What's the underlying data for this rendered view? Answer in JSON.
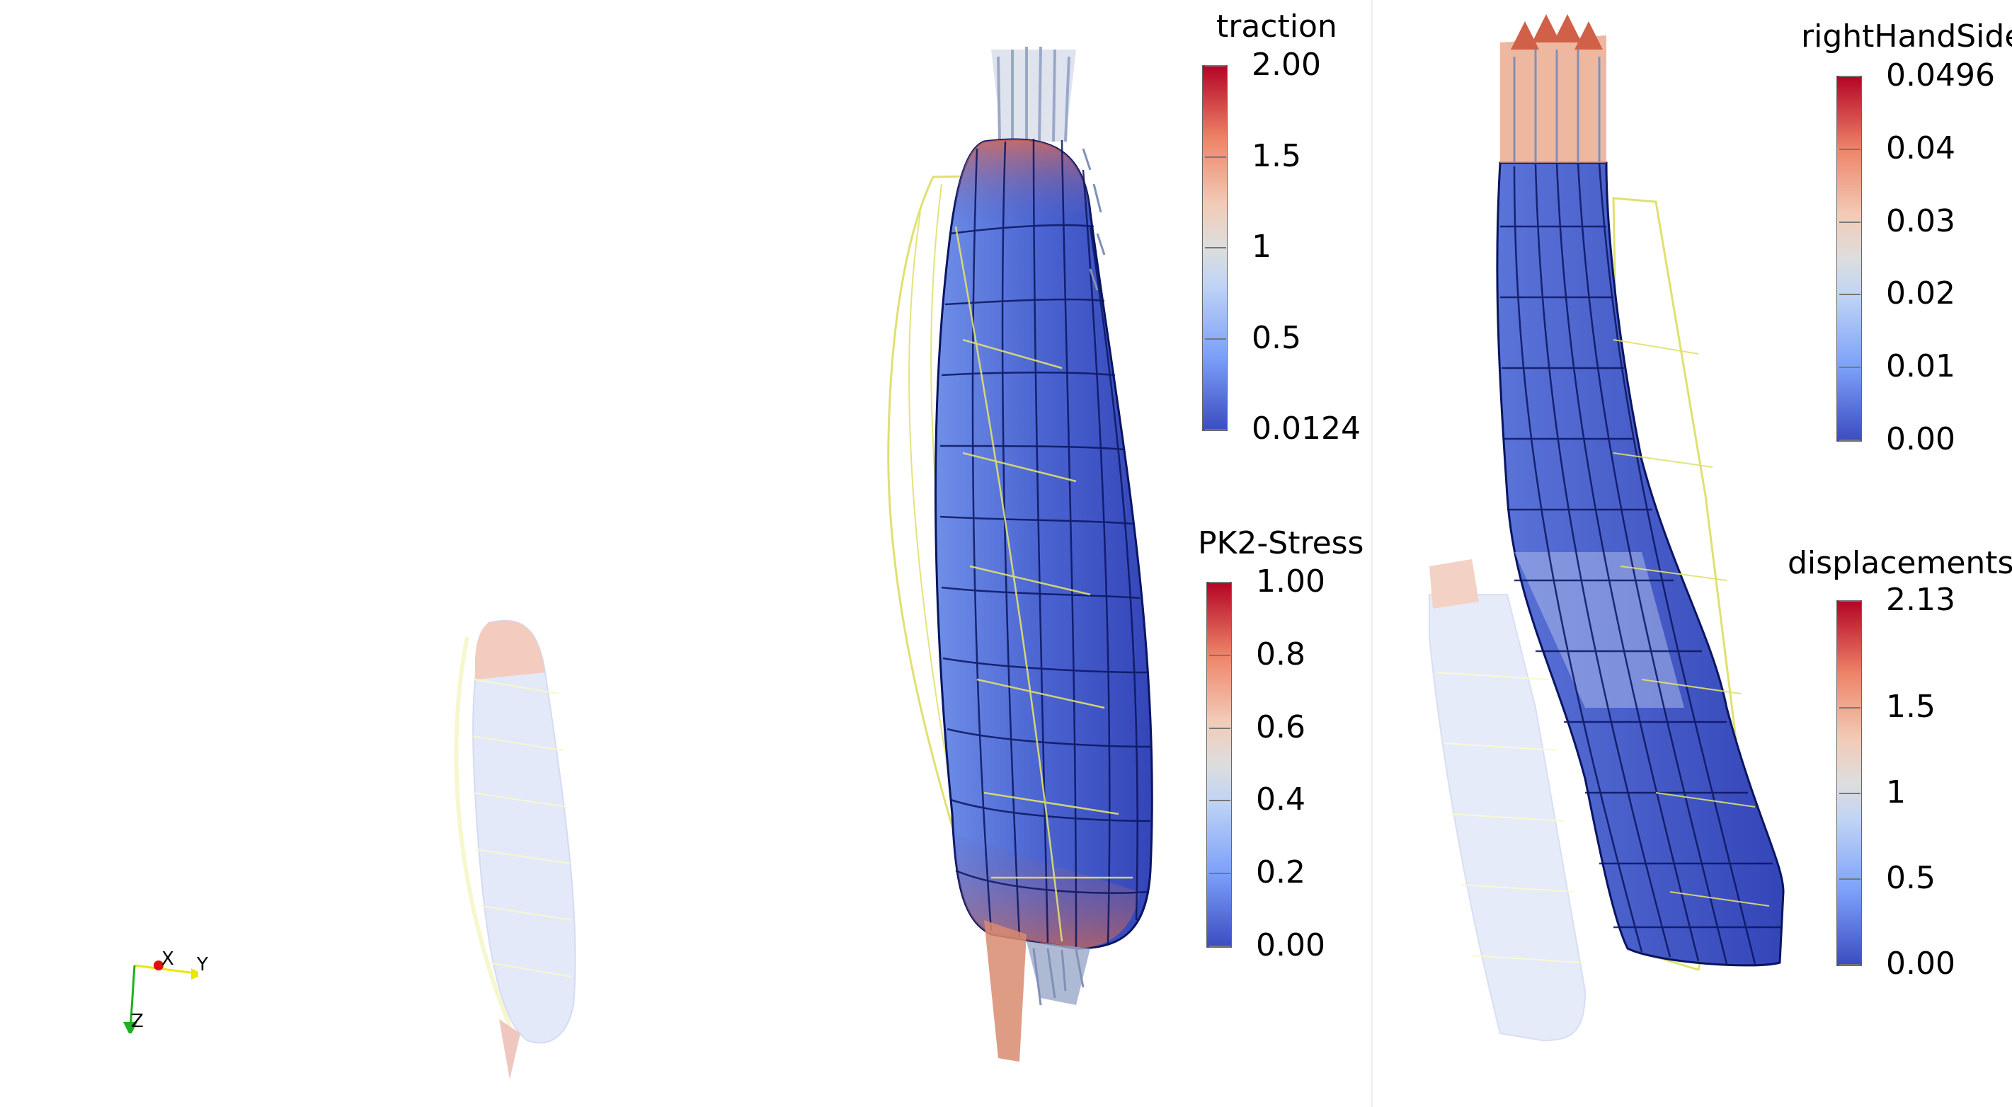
{
  "views": {
    "left": {
      "orientation_axes": {
        "x": "X",
        "y": "Y",
        "z": "Z"
      },
      "scalar_bars": [
        {
          "title": "traction",
          "labels": [
            "2.00",
            "1.5",
            "1",
            "0.5",
            "0.0124"
          ]
        },
        {
          "title": "PK2-Stress",
          "labels": [
            "1.00",
            "0.8",
            "0.6",
            "0.4",
            "0.2",
            "0.00"
          ]
        }
      ]
    },
    "right": {
      "scalar_bars": [
        {
          "title": "rightHandSide",
          "labels": [
            "0.0496",
            "0.04",
            "0.03",
            "0.02",
            "0.01",
            "0.00"
          ]
        },
        {
          "title": "displacements",
          "labels": [
            "2.13",
            "1.5",
            "1",
            "0.5",
            "0.00"
          ]
        }
      ]
    }
  },
  "colors": {
    "colormap_low": "#3b4cc0",
    "colormap_mid": "#dddddd",
    "colormap_high": "#b40426",
    "wireframe": "#e0e070",
    "mesh_lines": "#0a1560"
  }
}
